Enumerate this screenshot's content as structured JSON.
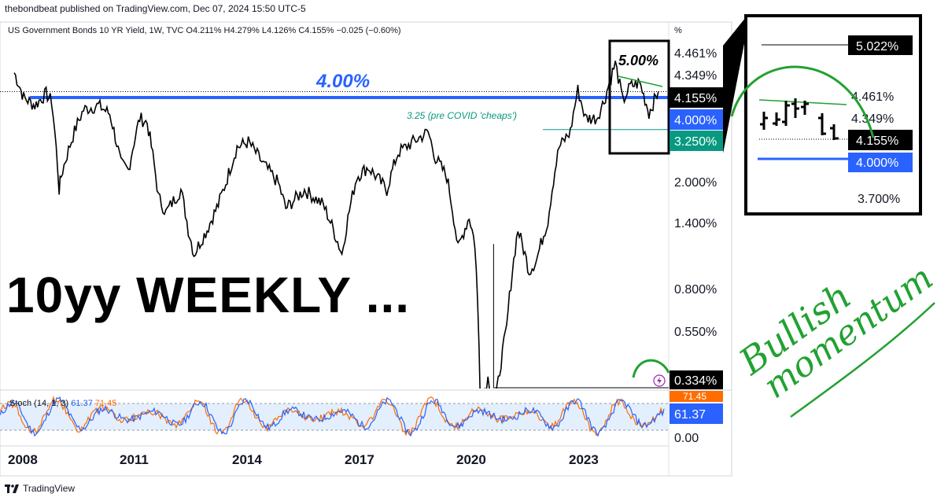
{
  "header": {
    "published": "thebondbeat published on TradingView.com, Dec 07, 2024 15:50 UTC-5",
    "symbol_line": "US Government Bonds 10 YR Yield, 1W, TVC  O4.211%  H4.279%  L4.126%  C4.155%  −0.025 (−0.60%)",
    "unit": "%"
  },
  "footer": {
    "brand": "TradingView"
  },
  "overlay_title": "10yy WEEKLY ...",
  "annotations": {
    "level_400": "4.00%",
    "level_500": "5.00%",
    "pre_covid": "3.25 (pre COVID 'cheaps')",
    "bullish": "Bullish",
    "momentum": "momentum"
  },
  "stoch": {
    "label": "Stoch (14, 1, 3)",
    "k": "61.37",
    "d": "71.45"
  },
  "colors": {
    "blue": "#2962ff",
    "teal": "#089981",
    "green": "#22a132",
    "black": "#000000",
    "orange": "#ff6d00"
  },
  "chart_data": {
    "type": "line",
    "title": "US Government Bonds 10 YR Yield, 1W, TVC",
    "y_scale": "log",
    "x": [
      2007.75,
      2008.0,
      2008.3,
      2008.6,
      2008.75,
      2008.95,
      2009.0,
      2009.4,
      2009.6,
      2010.0,
      2010.3,
      2010.6,
      2010.8,
      2011.1,
      2011.3,
      2011.6,
      2011.8,
      2012.2,
      2012.4,
      2012.55,
      2012.9,
      2013.2,
      2013.4,
      2013.7,
      2014.0,
      2014.4,
      2014.8,
      2015.0,
      2015.5,
      2016.0,
      2016.5,
      2016.9,
      2017.2,
      2017.7,
      2018.0,
      2018.4,
      2018.8,
      2019.0,
      2019.3,
      2019.6,
      2019.9,
      2020.05,
      2020.2,
      2020.4,
      2020.6,
      2020.9,
      2021.2,
      2021.5,
      2021.7,
      2022.0,
      2022.3,
      2022.6,
      2022.8,
      2023.0,
      2023.3,
      2023.5,
      2023.8,
      2024.0,
      2024.2,
      2024.45,
      2024.7,
      2024.95
    ],
    "y": [
      4.7,
      4.0,
      3.8,
      4.1,
      3.9,
      2.2,
      2.4,
      3.3,
      3.7,
      3.8,
      3.6,
      2.6,
      2.5,
      3.5,
      3.4,
      2.1,
      1.9,
      2.2,
      1.7,
      1.45,
      1.7,
      2.0,
      2.3,
      2.9,
      3.0,
      2.6,
      2.3,
      1.95,
      2.2,
      2.0,
      1.45,
      2.4,
      2.55,
      2.2,
      2.8,
      3.0,
      3.2,
      2.7,
      2.4,
      1.5,
      1.85,
      1.55,
      0.55,
      0.65,
      0.55,
      0.9,
      1.7,
      1.3,
      1.4,
      1.8,
      2.9,
      3.2,
      4.2,
      3.5,
      3.5,
      3.9,
      4.98,
      3.9,
      4.3,
      4.4,
      3.62,
      4.155
    ],
    "xticks": [
      "2008",
      "2011",
      "2014",
      "2017",
      "2020",
      "2023"
    ],
    "yticks": [
      "4.461%",
      "4.349%",
      "2.000%",
      "1.400%",
      "0.800%",
      "0.550%"
    ],
    "price_labels": {
      "last": "4.155%",
      "level_4": "4.000%",
      "level_325": "3.250%",
      "low": "0.334%"
    },
    "inset": {
      "labels": [
        "5.022%",
        "4.461%",
        "4.349%",
        "4.155%",
        "4.000%",
        "3.700%"
      ]
    },
    "stoch_ticks": [
      "61.37",
      "0.00"
    ],
    "stoch_d_label": "71.45"
  }
}
